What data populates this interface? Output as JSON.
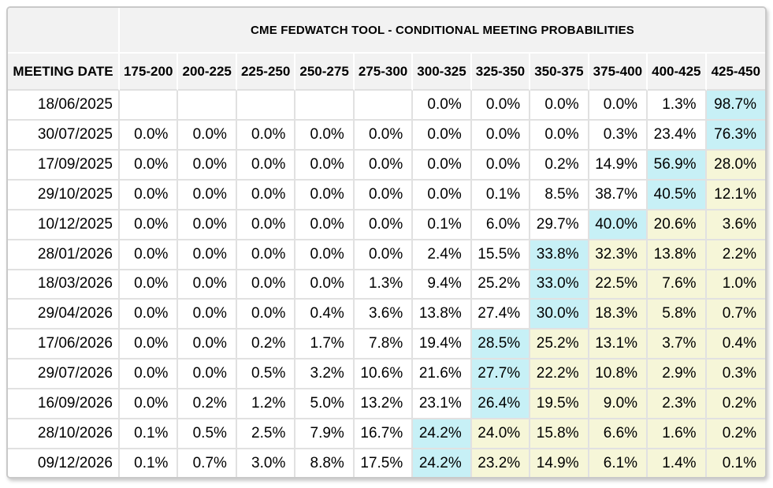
{
  "title": "CME FEDWATCH TOOL - CONDITIONAL MEETING PROBABILITIES",
  "table": {
    "date_header": "MEETING DATE",
    "rate_headers": [
      "175-200",
      "200-225",
      "225-250",
      "250-275",
      "275-300",
      "300-325",
      "325-350",
      "350-375",
      "375-400",
      "400-425",
      "425-450"
    ],
    "rows": [
      {
        "date": "18/06/2025",
        "values": [
          "",
          "",
          "",
          "",
          "",
          "0.0%",
          "0.0%",
          "0.0%",
          "0.0%",
          "1.3%",
          "98.7%"
        ],
        "hl": [
          "w",
          "w",
          "w",
          "w",
          "w",
          "w",
          "w",
          "w",
          "w",
          "w",
          "c"
        ]
      },
      {
        "date": "30/07/2025",
        "values": [
          "0.0%",
          "0.0%",
          "0.0%",
          "0.0%",
          "0.0%",
          "0.0%",
          "0.0%",
          "0.0%",
          "0.3%",
          "23.4%",
          "76.3%"
        ],
        "hl": [
          "w",
          "w",
          "w",
          "w",
          "w",
          "w",
          "w",
          "w",
          "w",
          "w",
          "c"
        ]
      },
      {
        "date": "17/09/2025",
        "values": [
          "0.0%",
          "0.0%",
          "0.0%",
          "0.0%",
          "0.0%",
          "0.0%",
          "0.0%",
          "0.2%",
          "14.9%",
          "56.9%",
          "28.0%"
        ],
        "hl": [
          "w",
          "w",
          "w",
          "w",
          "w",
          "w",
          "w",
          "w",
          "w",
          "c",
          "y"
        ]
      },
      {
        "date": "29/10/2025",
        "values": [
          "0.0%",
          "0.0%",
          "0.0%",
          "0.0%",
          "0.0%",
          "0.0%",
          "0.1%",
          "8.5%",
          "38.7%",
          "40.5%",
          "12.1%"
        ],
        "hl": [
          "w",
          "w",
          "w",
          "w",
          "w",
          "w",
          "w",
          "w",
          "w",
          "c",
          "y"
        ]
      },
      {
        "date": "10/12/2025",
        "values": [
          "0.0%",
          "0.0%",
          "0.0%",
          "0.0%",
          "0.0%",
          "0.1%",
          "6.0%",
          "29.7%",
          "40.0%",
          "20.6%",
          "3.6%"
        ],
        "hl": [
          "w",
          "w",
          "w",
          "w",
          "w",
          "w",
          "w",
          "w",
          "c",
          "y",
          "y"
        ]
      },
      {
        "date": "28/01/2026",
        "values": [
          "0.0%",
          "0.0%",
          "0.0%",
          "0.0%",
          "0.0%",
          "2.4%",
          "15.5%",
          "33.8%",
          "32.3%",
          "13.8%",
          "2.2%"
        ],
        "hl": [
          "w",
          "w",
          "w",
          "w",
          "w",
          "w",
          "w",
          "c",
          "y",
          "y",
          "y"
        ]
      },
      {
        "date": "18/03/2026",
        "values": [
          "0.0%",
          "0.0%",
          "0.0%",
          "0.0%",
          "1.3%",
          "9.4%",
          "25.2%",
          "33.0%",
          "22.5%",
          "7.6%",
          "1.0%"
        ],
        "hl": [
          "w",
          "w",
          "w",
          "w",
          "w",
          "w",
          "w",
          "c",
          "y",
          "y",
          "y"
        ]
      },
      {
        "date": "29/04/2026",
        "values": [
          "0.0%",
          "0.0%",
          "0.0%",
          "0.4%",
          "3.6%",
          "13.8%",
          "27.4%",
          "30.0%",
          "18.3%",
          "5.8%",
          "0.7%"
        ],
        "hl": [
          "w",
          "w",
          "w",
          "w",
          "w",
          "w",
          "w",
          "c",
          "y",
          "y",
          "y"
        ]
      },
      {
        "date": "17/06/2026",
        "values": [
          "0.0%",
          "0.0%",
          "0.2%",
          "1.7%",
          "7.8%",
          "19.4%",
          "28.5%",
          "25.2%",
          "13.1%",
          "3.7%",
          "0.4%"
        ],
        "hl": [
          "w",
          "w",
          "w",
          "w",
          "w",
          "w",
          "c",
          "y",
          "y",
          "y",
          "y"
        ]
      },
      {
        "date": "29/07/2026",
        "values": [
          "0.0%",
          "0.0%",
          "0.5%",
          "3.2%",
          "10.6%",
          "21.6%",
          "27.7%",
          "22.2%",
          "10.8%",
          "2.9%",
          "0.3%"
        ],
        "hl": [
          "w",
          "w",
          "w",
          "w",
          "w",
          "w",
          "c",
          "y",
          "y",
          "y",
          "y"
        ]
      },
      {
        "date": "16/09/2026",
        "values": [
          "0.0%",
          "0.2%",
          "1.2%",
          "5.0%",
          "13.2%",
          "23.1%",
          "26.4%",
          "19.5%",
          "9.0%",
          "2.3%",
          "0.2%"
        ],
        "hl": [
          "w",
          "w",
          "w",
          "w",
          "w",
          "w",
          "c",
          "y",
          "y",
          "y",
          "y"
        ]
      },
      {
        "date": "28/10/2026",
        "values": [
          "0.1%",
          "0.5%",
          "2.5%",
          "7.9%",
          "16.7%",
          "24.2%",
          "24.0%",
          "15.8%",
          "6.6%",
          "1.6%",
          "0.2%"
        ],
        "hl": [
          "w",
          "w",
          "w",
          "w",
          "w",
          "c",
          "y",
          "y",
          "y",
          "y",
          "y"
        ]
      },
      {
        "date": "09/12/2026",
        "values": [
          "0.1%",
          "0.7%",
          "3.0%",
          "8.8%",
          "17.5%",
          "24.2%",
          "23.2%",
          "14.9%",
          "6.1%",
          "1.4%",
          "0.1%"
        ],
        "hl": [
          "w",
          "w",
          "w",
          "w",
          "w",
          "c",
          "y",
          "y",
          "y",
          "y",
          "y"
        ]
      }
    ]
  },
  "colors": {
    "highlight_cyan": "#c7f0f6",
    "highlight_yellow": "#f6f6d8",
    "header_bg": "#f2f2f2"
  }
}
